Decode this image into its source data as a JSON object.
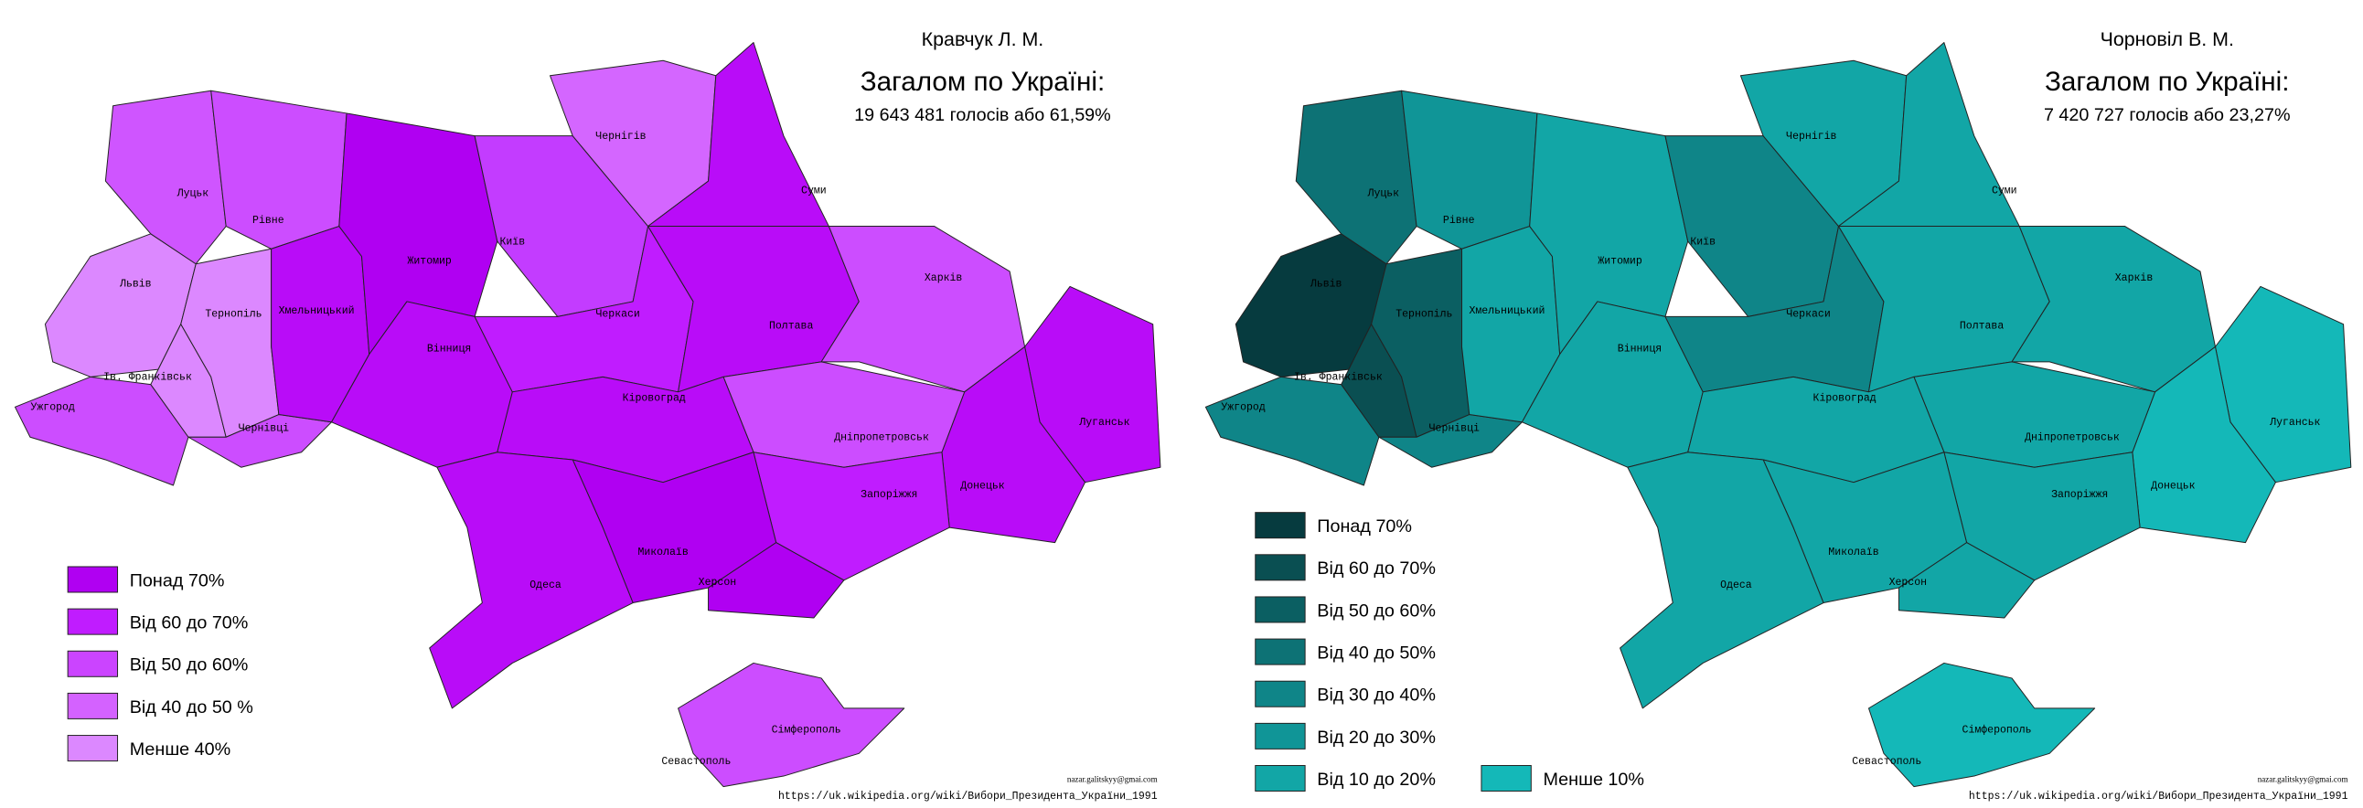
{
  "maps": [
    {
      "candidate": "Кравчук Л. М.",
      "total_heading": "Загалом по Україні:",
      "total_text": "19 643 481 голосів або 61,59%",
      "legend": [
        {
          "label": "Понад 70%",
          "color": "#b000f2"
        },
        {
          "label": "Від 60 до 70%",
          "color": "#c01cff"
        },
        {
          "label": "Від 50 до 60%",
          "color": "#cb44ff"
        },
        {
          "label": "Від 40 до 50 %",
          "color": "#d462ff"
        },
        {
          "label": "Менше 40%",
          "color": "#dc88ff"
        }
      ],
      "regions": [
        {
          "label": "Ужгород",
          "color": "#cc4dff"
        },
        {
          "label": "Львів",
          "color": "#dc88ff"
        },
        {
          "label": "Ів. Франківськ",
          "color": "#dc88ff"
        },
        {
          "label": "Тернопіль",
          "color": "#dc88ff"
        },
        {
          "label": "Чернівці",
          "color": "#cc4dff"
        },
        {
          "label": "Луцьк",
          "color": "#cf55ff"
        },
        {
          "label": "Рівне",
          "color": "#cc4dff"
        },
        {
          "label": "Хмельницький",
          "color": "#b90cf8"
        },
        {
          "label": "Житомир",
          "color": "#b000f2"
        },
        {
          "label": "Вінниця",
          "color": "#b90cf8"
        },
        {
          "label": "Київ",
          "color": "#c33cff"
        },
        {
          "label": "Чернігів",
          "color": "#d466ff"
        },
        {
          "label": "Суми",
          "color": "#b90cf8"
        },
        {
          "label": "Черкаси",
          "color": "#c01cff"
        },
        {
          "label": "Полтава",
          "color": "#b90cf8"
        },
        {
          "label": "Харків",
          "color": "#cc4dff"
        },
        {
          "label": "Луганськ",
          "color": "#b90cf8"
        },
        {
          "label": "Донецьк",
          "color": "#b90cf8"
        },
        {
          "label": "Дніпропетровськ",
          "color": "#cc4dff"
        },
        {
          "label": "Запоріжжя",
          "color": "#c01cff"
        },
        {
          "label": "Кіровоград",
          "color": "#b90cf8"
        },
        {
          "label": "Миколаїв",
          "color": "#b000f2"
        },
        {
          "label": "Херсон",
          "color": "#b000f2"
        },
        {
          "label": "Одеса",
          "color": "#b90cf8"
        },
        {
          "label": "Сімферополь",
          "color": "#cc4dff"
        },
        {
          "label": "Севастополь",
          "color": "#cc4dff"
        }
      ],
      "credit": "nazar.galitskyy@gmai.com",
      "source": "https://uk.wikipedia.org/wiki/Вибори_Президента_України_1991"
    },
    {
      "candidate": "Чорновіл В. М.",
      "total_heading": "Загалом по Україні:",
      "total_text": "7 420 727 голосів або 23,27%",
      "legend": [
        {
          "label": "Понад 70%",
          "color": "#063b3f"
        },
        {
          "label": "Від 60 до 70%",
          "color": "#0a4f52"
        },
        {
          "label": "Від 50 до 60%",
          "color": "#0b5f62"
        },
        {
          "label": "Від 40 до 50%",
          "color": "#0d7275"
        },
        {
          "label": "Від 30 до 40%",
          "color": "#0f8588"
        },
        {
          "label": "Від 20 до 30%",
          "color": "#109597"
        },
        {
          "label": "Від 10 до 20%",
          "color": "#12a6a6"
        },
        {
          "label": "Менше 10%",
          "color": "#14b8b8"
        }
      ],
      "regions": [
        {
          "label": "Ужгород",
          "color": "#0f8588"
        },
        {
          "label": "Львів",
          "color": "#063b3f"
        },
        {
          "label": "Ів. Франківськ",
          "color": "#0a4f52"
        },
        {
          "label": "Тернопіль",
          "color": "#0b5f62"
        },
        {
          "label": "Чернівці",
          "color": "#0f8588"
        },
        {
          "label": "Луцьк",
          "color": "#0d7275"
        },
        {
          "label": "Рівне",
          "color": "#109597"
        },
        {
          "label": "Хмельницький",
          "color": "#12a6a6"
        },
        {
          "label": "Житомир",
          "color": "#12a6a6"
        },
        {
          "label": "Вінниця",
          "color": "#12a6a6"
        },
        {
          "label": "Київ",
          "color": "#0f8588"
        },
        {
          "label": "Чернігів",
          "color": "#12a6a6"
        },
        {
          "label": "Суми",
          "color": "#12a6a6"
        },
        {
          "label": "Черкаси",
          "color": "#0f8588"
        },
        {
          "label": "Полтава",
          "color": "#12a6a6"
        },
        {
          "label": "Харків",
          "color": "#12a6a6"
        },
        {
          "label": "Луганськ",
          "color": "#14b8b8"
        },
        {
          "label": "Донецьк",
          "color": "#14b8b8"
        },
        {
          "label": "Дніпропетровськ",
          "color": "#12a6a6"
        },
        {
          "label": "Запоріжжя",
          "color": "#12a6a6"
        },
        {
          "label": "Кіровоград",
          "color": "#12a6a6"
        },
        {
          "label": "Миколаїв",
          "color": "#12a6a6"
        },
        {
          "label": "Херсон",
          "color": "#12a6a6"
        },
        {
          "label": "Одеса",
          "color": "#12a6a6"
        },
        {
          "label": "Сімферополь",
          "color": "#14b8b8"
        },
        {
          "label": "Севастополь",
          "color": "#14b8b8"
        }
      ],
      "credit": "nazar.galitskyy@gmai.com",
      "source": "https://uk.wikipedia.org/wiki/Вибори_Президента_України_1991"
    }
  ]
}
